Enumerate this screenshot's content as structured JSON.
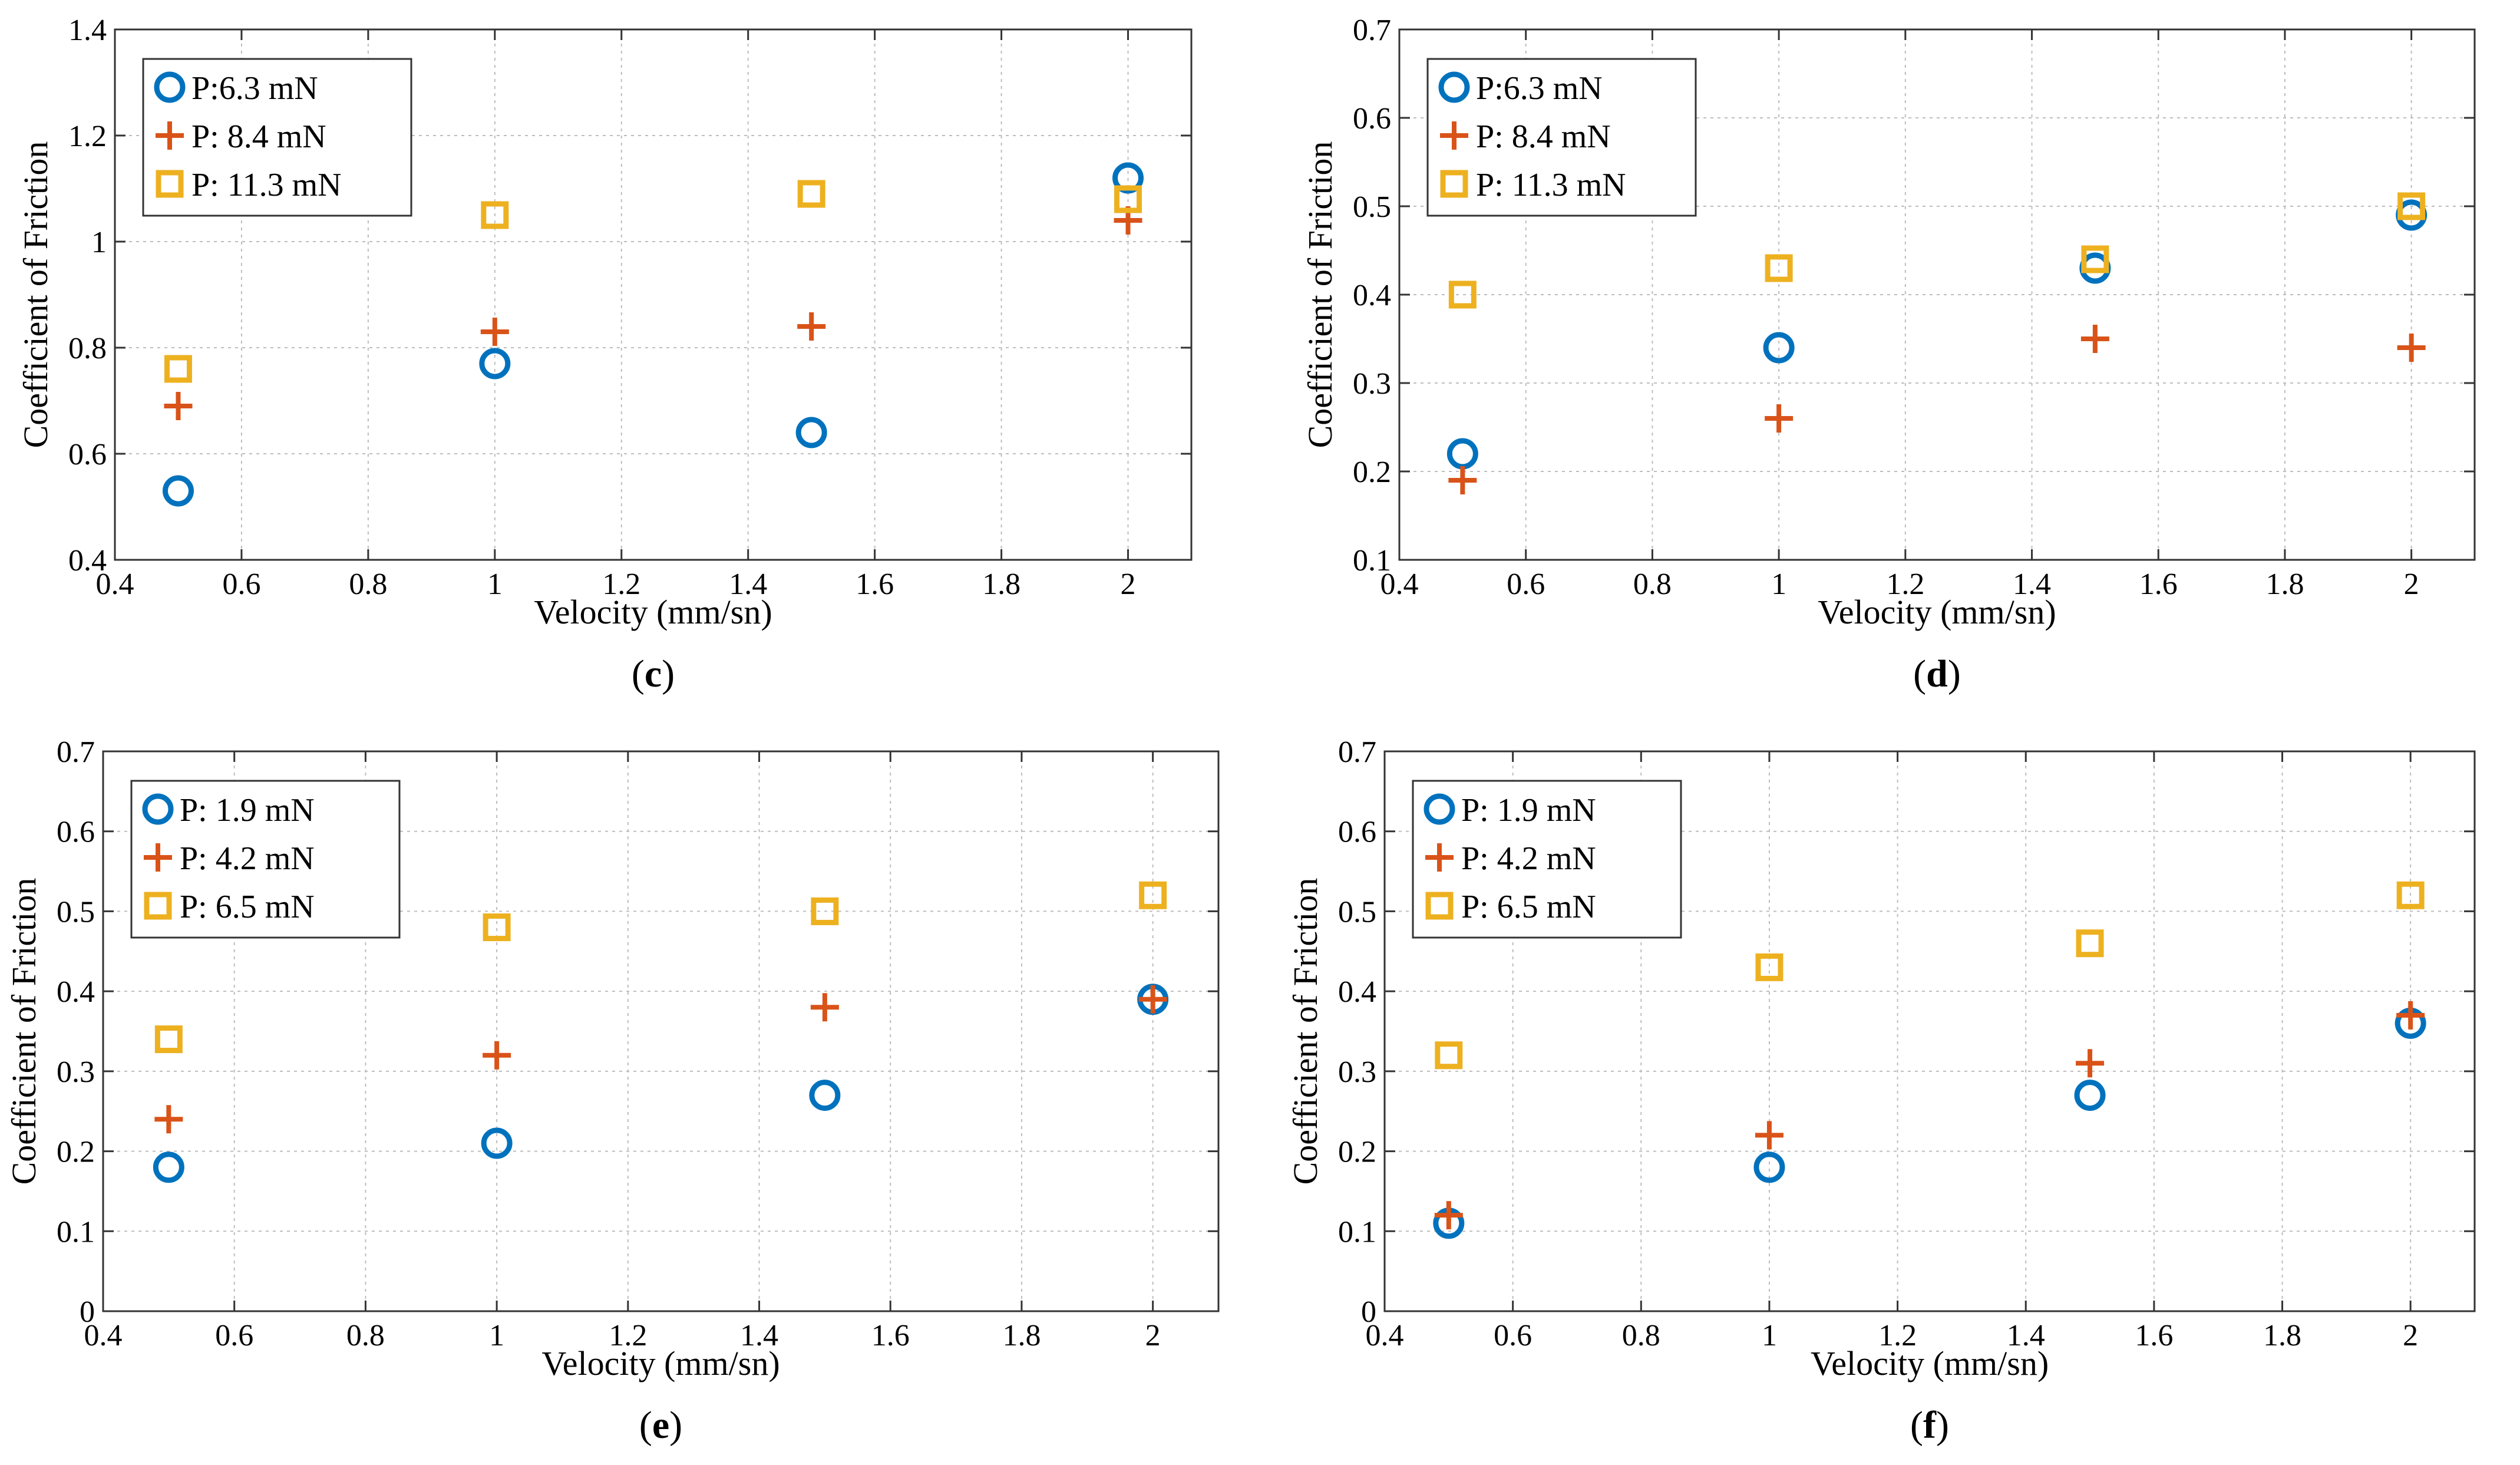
{
  "colors": {
    "circle": "#0072BD",
    "plus": "#D95319",
    "square": "#EDB120",
    "grid": "#bdbdbd",
    "axis": "#333333"
  },
  "chart_data": [
    {
      "type": "scatter",
      "panel_label": "c",
      "xlabel": "Velocity (mm/sn)",
      "ylabel": "Coefficient of Friction",
      "xlim": [
        0.4,
        2.1
      ],
      "ylim": [
        0.4,
        1.4
      ],
      "xticks": [
        0.4,
        0.6,
        0.8,
        1,
        1.2,
        1.4,
        1.6,
        1.8,
        2
      ],
      "yticks": [
        0.4,
        0.6,
        0.8,
        1,
        1.2,
        1.4
      ],
      "xtick_labels": [
        "0.4",
        "0.6",
        "0.8",
        "1",
        "1.2",
        "1.4",
        "1.6",
        "1.8",
        "2"
      ],
      "ytick_labels": [
        "0.4",
        "0.6",
        "0.8",
        "1",
        "1.2",
        "1.4"
      ],
      "grid": true,
      "legend_position": "top-left",
      "series": [
        {
          "name": "P:6.3 mN",
          "marker": "circle",
          "x": [
            0.5,
            1,
            1.5,
            2
          ],
          "y": [
            0.53,
            0.77,
            0.64,
            1.12
          ]
        },
        {
          "name": "P: 8.4 mN",
          "marker": "plus",
          "x": [
            0.5,
            1,
            1.5,
            2
          ],
          "y": [
            0.69,
            0.83,
            0.84,
            1.04
          ]
        },
        {
          "name": "P: 11.3 mN",
          "marker": "square",
          "x": [
            0.5,
            1,
            1.5,
            2
          ],
          "y": [
            0.76,
            1.05,
            1.09,
            1.08
          ]
        }
      ]
    },
    {
      "type": "scatter",
      "panel_label": "d",
      "xlabel": "Velocity (mm/sn)",
      "ylabel": "Coefficient of Friction",
      "xlim": [
        0.4,
        2.1
      ],
      "ylim": [
        0.1,
        0.7
      ],
      "xticks": [
        0.4,
        0.6,
        0.8,
        1,
        1.2,
        1.4,
        1.6,
        1.8,
        2
      ],
      "yticks": [
        0.1,
        0.2,
        0.3,
        0.4,
        0.5,
        0.6,
        0.7
      ],
      "xtick_labels": [
        "0.4",
        "0.6",
        "0.8",
        "1",
        "1.2",
        "1.4",
        "1.6",
        "1.8",
        "2"
      ],
      "ytick_labels": [
        "0.1",
        "0.2",
        "0.3",
        "0.4",
        "0.5",
        "0.6",
        "0.7"
      ],
      "grid": true,
      "legend_position": "top-left",
      "series": [
        {
          "name": "P:6.3 mN",
          "marker": "circle",
          "x": [
            0.5,
            1,
            1.5,
            2
          ],
          "y": [
            0.22,
            0.34,
            0.43,
            0.49
          ]
        },
        {
          "name": "P: 8.4 mN",
          "marker": "plus",
          "x": [
            0.5,
            1,
            1.5,
            2
          ],
          "y": [
            0.19,
            0.26,
            0.35,
            0.34
          ]
        },
        {
          "name": "P: 11.3 mN",
          "marker": "square",
          "x": [
            0.5,
            1,
            1.5,
            2
          ],
          "y": [
            0.4,
            0.43,
            0.44,
            0.5
          ]
        }
      ]
    },
    {
      "type": "scatter",
      "panel_label": "e",
      "xlabel": "Velocity (mm/sn)",
      "ylabel": "Coefficient of Friction",
      "xlim": [
        0.4,
        2.1
      ],
      "ylim": [
        0,
        0.7
      ],
      "xticks": [
        0.4,
        0.6,
        0.8,
        1,
        1.2,
        1.4,
        1.6,
        1.8,
        2
      ],
      "yticks": [
        0,
        0.1,
        0.2,
        0.3,
        0.4,
        0.5,
        0.6,
        0.7
      ],
      "xtick_labels": [
        "0.4",
        "0.6",
        "0.8",
        "1",
        "1.2",
        "1.4",
        "1.6",
        "1.8",
        "2"
      ],
      "ytick_labels": [
        "0",
        "0.1",
        "0.2",
        "0.3",
        "0.4",
        "0.5",
        "0.6",
        "0.7"
      ],
      "grid": true,
      "legend_position": "top-left",
      "series": [
        {
          "name": "P: 1.9 mN",
          "marker": "circle",
          "x": [
            0.5,
            1,
            1.5,
            2
          ],
          "y": [
            0.18,
            0.21,
            0.27,
            0.39
          ]
        },
        {
          "name": "P: 4.2 mN",
          "marker": "plus",
          "x": [
            0.5,
            1,
            1.5,
            2
          ],
          "y": [
            0.24,
            0.32,
            0.38,
            0.39
          ]
        },
        {
          "name": "P: 6.5 mN",
          "marker": "square",
          "x": [
            0.5,
            1,
            1.5,
            2
          ],
          "y": [
            0.34,
            0.48,
            0.5,
            0.52
          ]
        }
      ]
    },
    {
      "type": "scatter",
      "panel_label": "f",
      "xlabel": "Velocity (mm/sn)",
      "ylabel": "Coefficient of Friction",
      "xlim": [
        0.4,
        2.1
      ],
      "ylim": [
        0,
        0.7
      ],
      "xticks": [
        0.4,
        0.6,
        0.8,
        1,
        1.2,
        1.4,
        1.6,
        1.8,
        2
      ],
      "yticks": [
        0,
        0.1,
        0.2,
        0.3,
        0.4,
        0.5,
        0.6,
        0.7
      ],
      "xtick_labels": [
        "0.4",
        "0.6",
        "0.8",
        "1",
        "1.2",
        "1.4",
        "1.6",
        "1.8",
        "2"
      ],
      "ytick_labels": [
        "0",
        "0.1",
        "0.2",
        "0.3",
        "0.4",
        "0.5",
        "0.6",
        "0.7"
      ],
      "grid": true,
      "legend_position": "top-left",
      "series": [
        {
          "name": "P: 1.9 mN",
          "marker": "circle",
          "x": [
            0.5,
            1,
            1.5,
            2
          ],
          "y": [
            0.11,
            0.18,
            0.27,
            0.36
          ]
        },
        {
          "name": "P: 4.2 mN",
          "marker": "plus",
          "x": [
            0.5,
            1,
            1.5,
            2
          ],
          "y": [
            0.12,
            0.22,
            0.31,
            0.37
          ]
        },
        {
          "name": "P: 6.5 mN",
          "marker": "square",
          "x": [
            0.5,
            1,
            1.5,
            2
          ],
          "y": [
            0.32,
            0.43,
            0.46,
            0.52
          ]
        }
      ]
    }
  ]
}
